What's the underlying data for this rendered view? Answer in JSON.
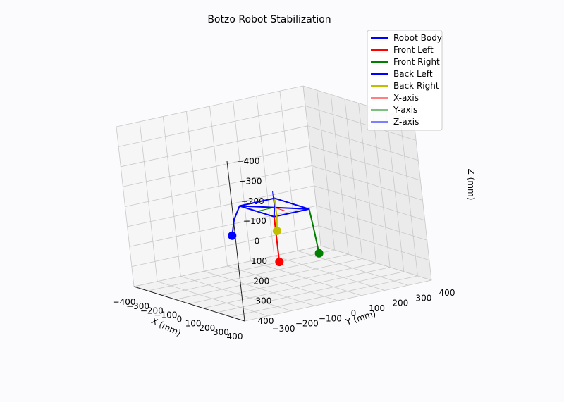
{
  "chart_data": {
    "type": "line3d",
    "title": "Botzo Robot Stabilization",
    "xlabel": "X (mm)",
    "ylabel": "Y (mm)",
    "zlabel": "Z (mm)",
    "xlim": [
      -400,
      400
    ],
    "ylim": [
      -400,
      400
    ],
    "zlim": [
      -400,
      400
    ],
    "z_inverted": true,
    "grid": true,
    "legend_position": "top-right",
    "x_ticks": [
      "−400",
      "−300",
      "−200",
      "−100",
      "0",
      "100",
      "200",
      "300",
      "400"
    ],
    "y_ticks": [
      "−300",
      "−200",
      "−100",
      "0",
      "100",
      "200",
      "300",
      "400"
    ],
    "z_ticks": [
      "−400",
      "−300",
      "−200",
      "−100",
      "0",
      "100",
      "200",
      "300",
      "400"
    ],
    "colors": {
      "body": "#0000ff",
      "front_left": "#ff0000",
      "front_right": "#007f00",
      "back_left": "#0000ff",
      "back_right": "#bfbf00",
      "x_axis": "#ff0000",
      "y_axis": "#008000",
      "z_axis": "#0000ff"
    },
    "body": [
      [
        -125,
        -75,
        20
      ],
      [
        125,
        -75,
        20
      ],
      [
        125,
        75,
        20
      ],
      [
        -125,
        75,
        20
      ],
      [
        -125,
        -75,
        20
      ],
      [
        125,
        75,
        20
      ],
      [
        -125,
        75,
        20
      ],
      [
        125,
        -75,
        20
      ]
    ],
    "legs": [
      {
        "key": "front_left",
        "name": "Front Left",
        "points": [
          [
            125,
            75,
            20
          ],
          [
            135,
            80,
            120
          ],
          [
            145,
            85,
            240
          ]
        ]
      },
      {
        "key": "front_right",
        "name": "Front Right",
        "points": [
          [
            125,
            -75,
            20
          ],
          [
            135,
            -80,
            120
          ],
          [
            145,
            -85,
            240
          ]
        ]
      },
      {
        "key": "back_left",
        "name": "Back Left",
        "points": [
          [
            -125,
            75,
            20
          ],
          [
            -150,
            90,
            90
          ],
          [
            -160,
            100,
            170
          ]
        ]
      },
      {
        "key": "back_right",
        "name": "Back Right",
        "points": [
          [
            -125,
            -75,
            20
          ],
          [
            -60,
            -40,
            90
          ],
          [
            -35,
            -20,
            150
          ]
        ]
      }
    ],
    "feet": [
      {
        "key": "front_left",
        "point": [
          145,
          85,
          240
        ]
      },
      {
        "key": "front_right",
        "point": [
          145,
          -85,
          240
        ]
      },
      {
        "key": "back_left",
        "point": [
          -160,
          100,
          170
        ]
      },
      {
        "key": "back_right",
        "point": [
          -35,
          -20,
          150
        ]
      }
    ],
    "orientation_axes": [
      {
        "key": "x_axis",
        "name": "X-axis",
        "from": [
          0,
          0,
          20
        ],
        "to": [
          80,
          0,
          20
        ]
      },
      {
        "key": "y_axis",
        "name": "Y-axis",
        "from": [
          0,
          0,
          20
        ],
        "to": [
          0,
          80,
          20
        ]
      },
      {
        "key": "z_axis",
        "name": "Z-axis",
        "from": [
          0,
          0,
          20
        ],
        "to": [
          0,
          0,
          -60
        ]
      }
    ],
    "legend": [
      {
        "label": "Robot Body",
        "color": "#0000ff",
        "width": 2
      },
      {
        "label": "Front Left",
        "color": "#ff0000",
        "width": 2
      },
      {
        "label": "Front Right",
        "color": "#007f00",
        "width": 2
      },
      {
        "label": "Back Left",
        "color": "#0000ff",
        "width": 2
      },
      {
        "label": "Back Right",
        "color": "#bfbf00",
        "width": 2
      },
      {
        "label": "X-axis",
        "color": "#ff0000",
        "width": 1
      },
      {
        "label": "Y-axis",
        "color": "#008000",
        "width": 1
      },
      {
        "label": "Z-axis",
        "color": "#0000ff",
        "width": 1
      }
    ]
  }
}
